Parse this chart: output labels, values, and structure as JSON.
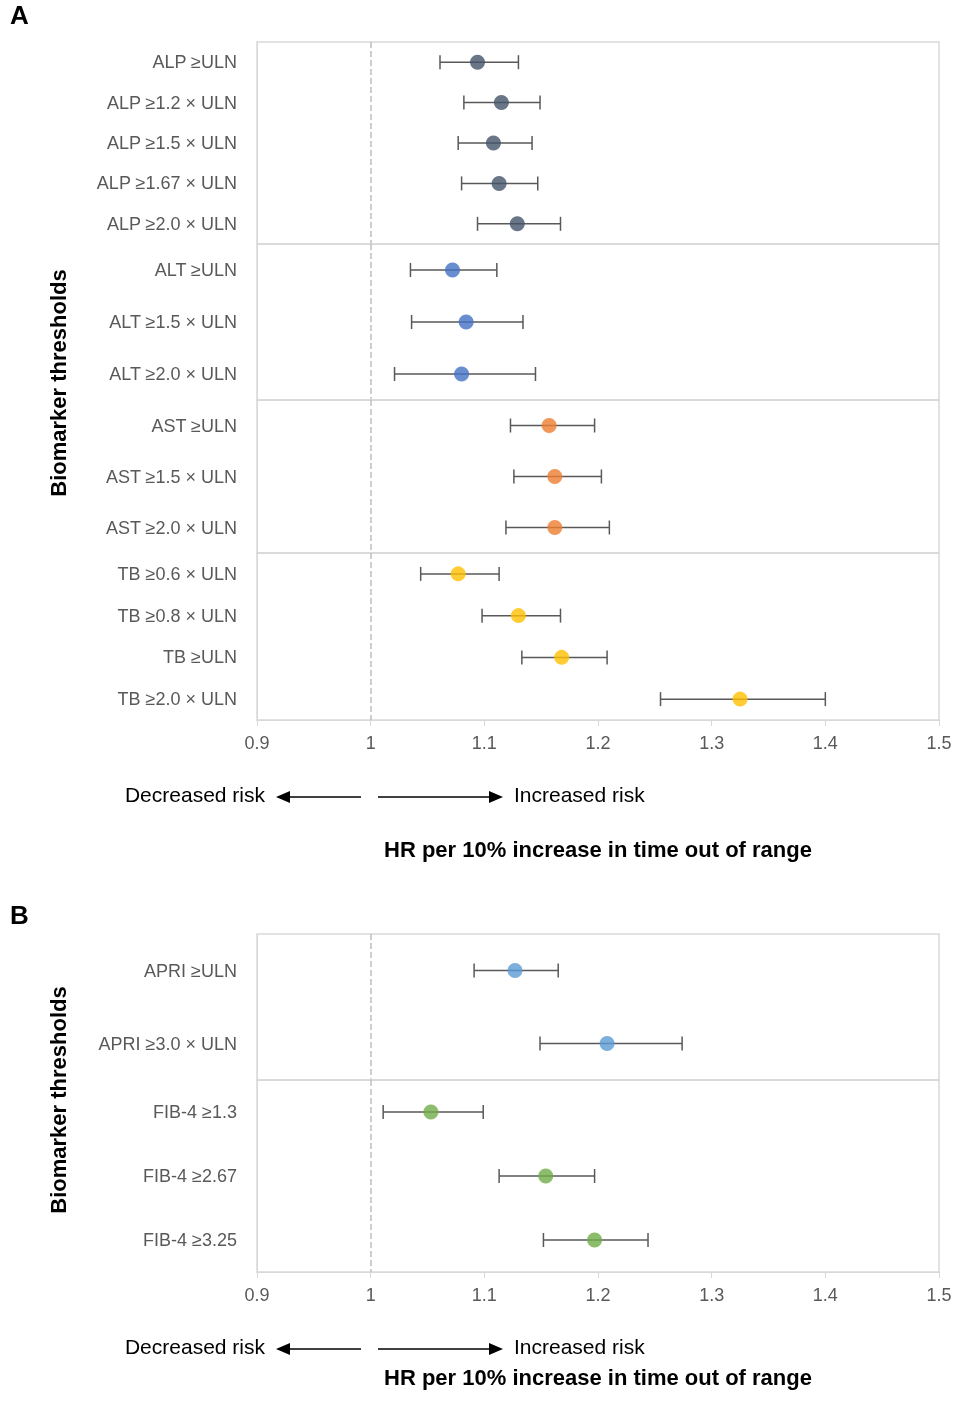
{
  "chart_data": [
    {
      "type": "scatter",
      "title": "A",
      "orientation": "horizontal",
      "marker": "circle",
      "tick_labels": "y",
      "categories": [
        "ALP ≥ULN",
        "ALP ≥1.2 × ULN",
        "ALP ≥1.5 × ULN",
        "ALP ≥1.67 × ULN",
        "ALP ≥2.0 × ULN"
      ],
      "values": [
        1.094,
        1.115,
        1.108,
        1.113,
        1.129
      ],
      "colors": [
        "#44546a",
        "#44546a",
        "#44546a",
        "#44546a",
        "#44546a"
      ],
      "errors": [
        [
          1.061,
          1.13
        ],
        [
          1.082,
          1.149
        ],
        [
          1.077,
          1.142
        ],
        [
          1.08,
          1.147
        ],
        [
          1.094,
          1.167
        ]
      ],
      "xlim": [
        0.9,
        1.5
      ],
      "xticks": [
        0.9,
        1,
        1.1,
        1.2,
        1.3,
        1.4,
        1.5
      ],
      "ref_lines": [
        {
          "axis": "x",
          "value": 1,
          "color": "#bfbfbf",
          "line_style": "dashed"
        }
      ]
    },
    {
      "type": "scatter",
      "ylabel": "Biomarker thresholds",
      "orientation": "horizontal",
      "marker": "circle",
      "tick_labels": "y",
      "categories": [
        "ALT ≥ULN",
        "ALT ≥1.5 × ULN",
        "ALT ≥2.0 × ULN"
      ],
      "values": [
        1.072,
        1.084,
        1.08
      ],
      "colors": [
        "#4472c4",
        "#4472c4",
        "#4472c4"
      ],
      "errors": [
        [
          1.035,
          1.111
        ],
        [
          1.036,
          1.134
        ],
        [
          1.021,
          1.145
        ]
      ],
      "xlim": [
        0.9,
        1.5
      ],
      "xticks": [
        0.9,
        1,
        1.1,
        1.2,
        1.3,
        1.4,
        1.5
      ],
      "ref_lines": [
        {
          "axis": "x",
          "value": 1,
          "color": "#bfbfbf",
          "line_style": "dashed"
        }
      ]
    },
    {
      "type": "scatter",
      "orientation": "horizontal",
      "marker": "circle",
      "tick_labels": "y",
      "categories": [
        "AST ≥ULN",
        "AST ≥1.5 × ULN",
        "AST ≥2.0 × ULN"
      ],
      "values": [
        1.157,
        1.162,
        1.162
      ],
      "colors": [
        "#ed7d31",
        "#ed7d31",
        "#ed7d31"
      ],
      "errors": [
        [
          1.123,
          1.197
        ],
        [
          1.126,
          1.203
        ],
        [
          1.119,
          1.21
        ]
      ],
      "xlim": [
        0.9,
        1.5
      ],
      "xticks": [
        0.9,
        1,
        1.1,
        1.2,
        1.3,
        1.4,
        1.5
      ],
      "ref_lines": [
        {
          "axis": "x",
          "value": 1,
          "color": "#bfbfbf",
          "line_style": "dashed"
        }
      ]
    },
    {
      "type": "scatter",
      "xlabel": "HR per 10% increase in time out of range",
      "annotations": [
        "Decreased risk",
        "Increased risk"
      ],
      "orientation": "horizontal",
      "marker": "circle",
      "categories": [
        "TB ≥0.6 × ULN",
        "TB ≥0.8 × ULN",
        "TB ≥ULN",
        "TB ≥2.0 × ULN"
      ],
      "values": [
        1.077,
        1.13,
        1.168,
        1.325
      ],
      "colors": [
        "#ffc000",
        "#ffc000",
        "#ffc000",
        "#ffc000"
      ],
      "errors": [
        [
          1.044,
          1.113
        ],
        [
          1.098,
          1.167
        ],
        [
          1.133,
          1.208
        ],
        [
          1.255,
          1.4
        ]
      ],
      "xlim": [
        0.9,
        1.5
      ],
      "xticks": [
        0.9,
        1,
        1.1,
        1.2,
        1.3,
        1.4,
        1.5
      ],
      "ref_lines": [
        {
          "axis": "x",
          "value": 1,
          "color": "#bfbfbf",
          "line_style": "dashed"
        }
      ]
    },
    {
      "type": "scatter",
      "title": "B",
      "orientation": "horizontal",
      "marker": "circle",
      "tick_labels": "y",
      "categories": [
        "APRI ≥ULN",
        "APRI ≥3.0 × ULN"
      ],
      "values": [
        1.127,
        1.208
      ],
      "colors": [
        "#5b9bd5",
        "#5b9bd5"
      ],
      "errors": [
        [
          1.091,
          1.165
        ],
        [
          1.149,
          1.274
        ]
      ],
      "xlim": [
        0.9,
        1.5
      ],
      "xticks": [
        0.9,
        1,
        1.1,
        1.2,
        1.3,
        1.4,
        1.5
      ],
      "ref_lines": [
        {
          "axis": "x",
          "value": 1,
          "color": "#bfbfbf",
          "line_style": "dashed"
        }
      ]
    },
    {
      "type": "scatter",
      "ylabel": "Biomarker thresholds",
      "xlabel": "HR per 10% increase in time out of range",
      "annotations": [
        "Decreased risk",
        "Increased risk"
      ],
      "orientation": "horizontal",
      "marker": "circle",
      "categories": [
        "FIB-4 ≥1.3",
        "FIB-4 ≥2.67",
        "FIB-4 ≥3.25"
      ],
      "values": [
        1.053,
        1.154,
        1.197
      ],
      "colors": [
        "#70ad47",
        "#70ad47",
        "#70ad47"
      ],
      "errors": [
        [
          1.011,
          1.099
        ],
        [
          1.113,
          1.197
        ],
        [
          1.152,
          1.244
        ]
      ],
      "xlim": [
        0.9,
        1.5
      ],
      "xticks": [
        0.9,
        1,
        1.1,
        1.2,
        1.3,
        1.4,
        1.5
      ],
      "ref_lines": [
        {
          "axis": "x",
          "value": 1,
          "color": "#bfbfbf",
          "line_style": "dashed"
        }
      ]
    }
  ]
}
